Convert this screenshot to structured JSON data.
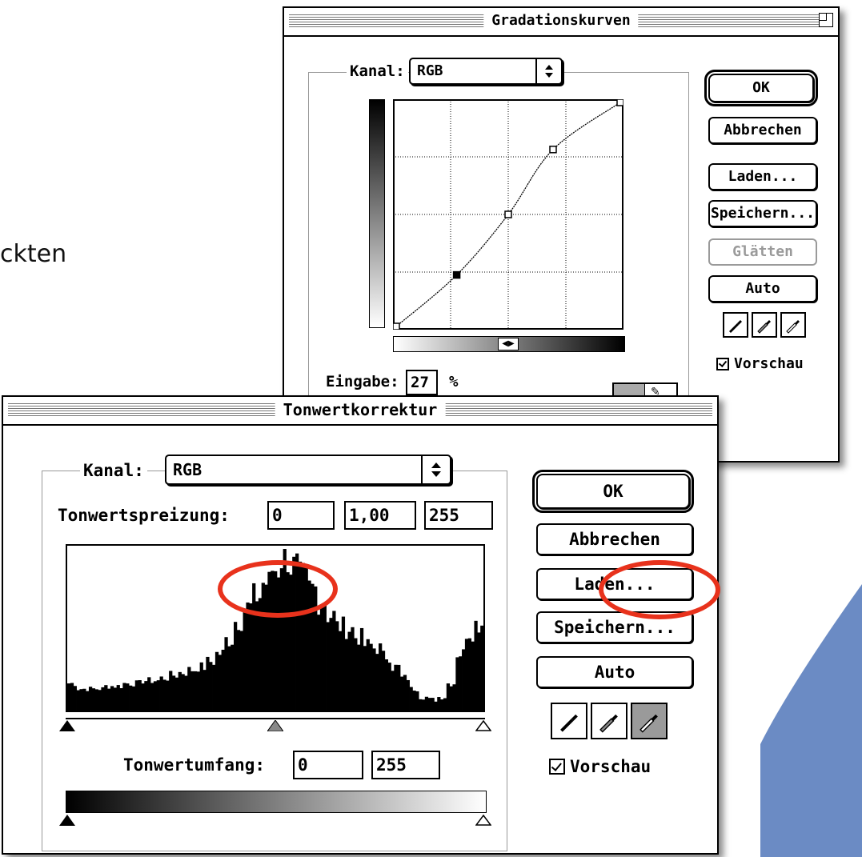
{
  "background": {
    "partial_text": "ckten",
    "accent_color": "#6b8bc4",
    "highlight_color": "#e8321c"
  },
  "curves": {
    "title": "Gradationskurven",
    "channel_label": "Kanal:",
    "channel_value": "RGB",
    "input_label": "Eingabe:",
    "input_value": "27",
    "input_unit": "%",
    "buttons": {
      "ok": "OK",
      "cancel": "Abbrechen",
      "load": "Laden...",
      "save": "Speichern...",
      "smooth": "Glätten",
      "auto": "Auto"
    },
    "preview_label": "Vorschau",
    "preview_checked": true,
    "curve_points": [
      [
        0,
        0
      ],
      [
        27,
        23
      ],
      [
        50,
        50
      ],
      [
        70,
        79
      ],
      [
        100,
        100
      ]
    ]
  },
  "levels": {
    "title": "Tonwertkorrektur",
    "channel_label": "Kanal:",
    "channel_value": "RGB",
    "input_levels_label": "Tonwertspreizung:",
    "input_black": "0",
    "input_gamma": "1,00",
    "input_white": "255",
    "output_levels_label": "Tonwertumfang:",
    "output_black": "0",
    "output_white": "255",
    "buttons": {
      "ok": "OK",
      "cancel": "Abbrechen",
      "load": "Laden...",
      "save": "Speichern...",
      "auto": "Auto"
    },
    "preview_label": "Vorschau",
    "preview_checked": true,
    "histogram": [
      10,
      8,
      8,
      8,
      9,
      9,
      10,
      10,
      11,
      11,
      12,
      13,
      14,
      15,
      16,
      18,
      21,
      26,
      33,
      38,
      42,
      47,
      52,
      56,
      53,
      49,
      45,
      40,
      35,
      31,
      30,
      27,
      24,
      23,
      20,
      16,
      12,
      8,
      5,
      4,
      5,
      10,
      21,
      29,
      32
    ],
    "gamma_slider": 1.0
  }
}
